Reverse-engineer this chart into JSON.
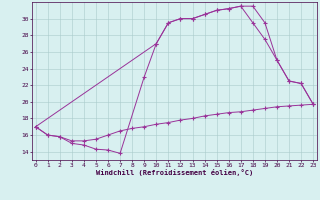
{
  "xlabel": "Windchill (Refroidissement éolien,°C)",
  "bg_color": "#d8f0f0",
  "line_color": "#993399",
  "grid_color": "#aacccc",
  "xlim": [
    -0.3,
    23.3
  ],
  "ylim": [
    13.0,
    32.0
  ],
  "yticks": [
    14,
    16,
    18,
    20,
    22,
    24,
    26,
    28,
    30
  ],
  "xticks": [
    0,
    1,
    2,
    3,
    4,
    5,
    6,
    7,
    8,
    9,
    10,
    11,
    12,
    13,
    14,
    15,
    16,
    17,
    18,
    19,
    20,
    21,
    22,
    23
  ],
  "line1_x": [
    0,
    1,
    2,
    3,
    4,
    5,
    6,
    7,
    9,
    10,
    11,
    12,
    13,
    14,
    15,
    16,
    17,
    18,
    19,
    20,
    21,
    22,
    23
  ],
  "line1_y": [
    17.0,
    16.0,
    15.8,
    15.0,
    14.8,
    14.3,
    14.2,
    13.8,
    23.0,
    27.0,
    29.5,
    30.0,
    30.0,
    30.5,
    31.0,
    31.2,
    31.5,
    31.5,
    29.5,
    25.0,
    22.5,
    22.2,
    19.7
  ],
  "line2_x": [
    0,
    1,
    2,
    3,
    4,
    5,
    6,
    7,
    8,
    9,
    10,
    11,
    12,
    13,
    14,
    15,
    16,
    17,
    18,
    19,
    20,
    21,
    22,
    23
  ],
  "line2_y": [
    17.0,
    16.0,
    15.8,
    15.3,
    15.3,
    15.5,
    16.0,
    16.5,
    16.8,
    17.0,
    17.3,
    17.5,
    17.8,
    18.0,
    18.3,
    18.5,
    18.7,
    18.8,
    19.0,
    19.2,
    19.4,
    19.5,
    19.6,
    19.7
  ],
  "line3_x": [
    0,
    10,
    11,
    12,
    13,
    14,
    15,
    16,
    17,
    18,
    19,
    20,
    21,
    22,
    23
  ],
  "line3_y": [
    17.0,
    27.0,
    29.5,
    30.0,
    30.0,
    30.5,
    31.0,
    31.2,
    31.5,
    29.5,
    27.5,
    25.0,
    22.5,
    22.2,
    19.7
  ]
}
